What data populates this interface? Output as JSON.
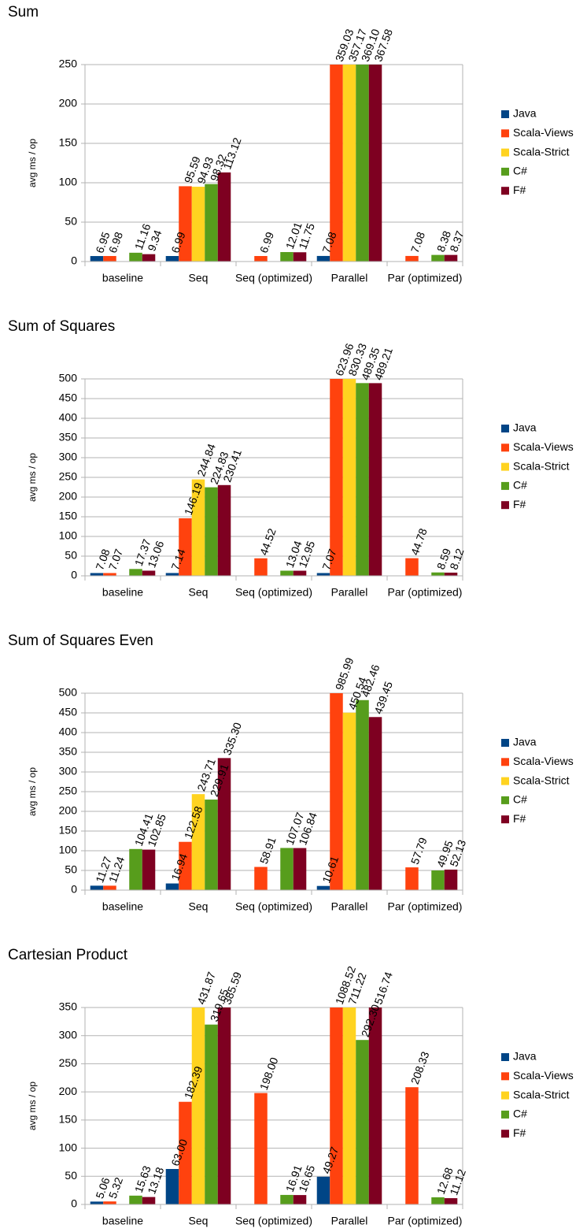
{
  "chart_data": [
    {
      "type": "bar",
      "title": "Sum",
      "ylabel": "avg ms / op",
      "categories": [
        "baseline",
        "Seq",
        "Seq (optimized)",
        "Parallel",
        "Par (optimized)"
      ],
      "ylim": [
        0,
        250
      ],
      "yticks": [
        0,
        50,
        100,
        150,
        200,
        250
      ],
      "grid": true,
      "legend": "right",
      "series": [
        {
          "name": "Java",
          "color": "#004586",
          "values": [
            6.95,
            6.99,
            null,
            7.08,
            null
          ],
          "value_labels": [
            "6.95",
            "6.99",
            null,
            "7.08",
            null
          ]
        },
        {
          "name": "Scala-Views",
          "color": "#ff420e",
          "values": [
            6.98,
            95.59,
            6.99,
            359.03,
            7.08
          ],
          "value_labels": [
            "6.98",
            "95.59",
            "6.99",
            "359.03",
            "7.08"
          ]
        },
        {
          "name": "Scala-Strict",
          "color": "#ffd320",
          "values": [
            null,
            94.93,
            null,
            357.17,
            null
          ],
          "value_labels": [
            null,
            "94.93",
            null,
            "357.17",
            null
          ]
        },
        {
          "name": "C#",
          "color": "#579d1c",
          "values": [
            11.16,
            98.32,
            12.01,
            369.1,
            8.38
          ],
          "value_labels": [
            "11.16",
            "98.32",
            "12.01",
            "369.10",
            "8.38"
          ]
        },
        {
          "name": "F#",
          "color": "#7e0021",
          "values": [
            9.34,
            113.12,
            11.75,
            367.58,
            8.37
          ],
          "value_labels": [
            "9.34",
            "113.12",
            "11.75",
            "367.58",
            "8.37"
          ]
        }
      ]
    },
    {
      "type": "bar",
      "title": "Sum of Squares",
      "ylabel": "avg ms / op",
      "categories": [
        "baseline",
        "Seq",
        "Seq (optimized)",
        "Parallel",
        "Par (optimized)"
      ],
      "ylim": [
        0,
        500
      ],
      "yticks": [
        0,
        50,
        100,
        150,
        200,
        250,
        300,
        350,
        400,
        450,
        500
      ],
      "grid": true,
      "legend": "right",
      "series": [
        {
          "name": "Java",
          "color": "#004586",
          "values": [
            7.08,
            7.14,
            null,
            7.07,
            null
          ],
          "value_labels": [
            "7.08",
            "7.14",
            null,
            "7.07",
            null
          ]
        },
        {
          "name": "Scala-Views",
          "color": "#ff420e",
          "values": [
            7.07,
            146.19,
            44.52,
            623.96,
            44.78
          ],
          "value_labels": [
            "7.07",
            "146.19",
            "44.52",
            "623.96",
            "44.78"
          ]
        },
        {
          "name": "Scala-Strict",
          "color": "#ffd320",
          "values": [
            null,
            244.84,
            null,
            830.33,
            null
          ],
          "value_labels": [
            null,
            "244.84",
            null,
            "830.33",
            null
          ]
        },
        {
          "name": "C#",
          "color": "#579d1c",
          "values": [
            17.37,
            224.83,
            13.04,
            489.35,
            8.59
          ],
          "value_labels": [
            "17.37",
            "224.83",
            "13.04",
            "489.35",
            "8.59"
          ]
        },
        {
          "name": "F#",
          "color": "#7e0021",
          "values": [
            13.06,
            230.41,
            12.95,
            489.21,
            8.12
          ],
          "value_labels": [
            "13.06",
            "230.41",
            "12.95",
            "489.21",
            "8.12"
          ]
        }
      ]
    },
    {
      "type": "bar",
      "title": "Sum of Squares Even",
      "ylabel": "avg ms / op",
      "categories": [
        "baseline",
        "Seq",
        "Seq (optimized)",
        "Parallel",
        "Par (optimized)"
      ],
      "ylim": [
        0,
        500
      ],
      "yticks": [
        0,
        50,
        100,
        150,
        200,
        250,
        300,
        350,
        400,
        450,
        500
      ],
      "grid": true,
      "legend": "right",
      "series": [
        {
          "name": "Java",
          "color": "#004586",
          "values": [
            11.27,
            16.94,
            null,
            10.61,
            null
          ],
          "value_labels": [
            "11.27",
            "16.94",
            null,
            "10.61",
            null
          ]
        },
        {
          "name": "Scala-Views",
          "color": "#ff420e",
          "values": [
            11.24,
            122.58,
            58.91,
            985.99,
            57.79
          ],
          "value_labels": [
            "11.24",
            "122.58",
            "58.91",
            "985.99",
            "57.79"
          ]
        },
        {
          "name": "Scala-Strict",
          "color": "#ffd320",
          "values": [
            null,
            243.71,
            null,
            450.54,
            null
          ],
          "value_labels": [
            null,
            "243.71",
            null,
            "450.54",
            null
          ]
        },
        {
          "name": "C#",
          "color": "#579d1c",
          "values": [
            104.41,
            229.91,
            107.07,
            482.46,
            49.95
          ],
          "value_labels": [
            "104.41",
            "229.91",
            "107.07",
            "482.46",
            "49.95"
          ]
        },
        {
          "name": "F#",
          "color": "#7e0021",
          "values": [
            102.85,
            335.3,
            106.84,
            439.45,
            52.13
          ],
          "value_labels": [
            "102.85",
            "335.30",
            "106.84",
            "439.45",
            "52.13"
          ]
        }
      ]
    },
    {
      "type": "bar",
      "title": "Cartesian Product",
      "ylabel": "avg ms / op",
      "categories": [
        "baseline",
        "Seq",
        "Seq (optimized)",
        "Parallel",
        "Par (optimized)"
      ],
      "ylim": [
        0,
        350
      ],
      "yticks": [
        0,
        50,
        100,
        150,
        200,
        250,
        300,
        350
      ],
      "grid": true,
      "legend": "right",
      "series": [
        {
          "name": "Java",
          "color": "#004586",
          "values": [
            5.06,
            63.0,
            null,
            49.27,
            null
          ],
          "value_labels": [
            "5.06",
            "63.00",
            null,
            "49.27",
            null
          ]
        },
        {
          "name": "Scala-Views",
          "color": "#ff420e",
          "values": [
            5.32,
            182.39,
            198.0,
            1088.52,
            208.33
          ],
          "value_labels": [
            "5.32",
            "182.39",
            "198.00",
            "1088.52",
            "208.33"
          ]
        },
        {
          "name": "Scala-Strict",
          "color": "#ffd320",
          "values": [
            null,
            431.87,
            null,
            711.22,
            null
          ],
          "value_labels": [
            null,
            "431.87",
            null,
            "711.22",
            null
          ]
        },
        {
          "name": "C#",
          "color": "#579d1c",
          "values": [
            15.63,
            319.65,
            16.91,
            292.3,
            12.68
          ],
          "value_labels": [
            "15.63",
            "319.65",
            "16.91",
            "292.30",
            "12.68"
          ]
        },
        {
          "name": "F#",
          "color": "#7e0021",
          "values": [
            13.18,
            385.59,
            16.65,
            516.74,
            11.12
          ],
          "value_labels": [
            "13.18",
            "385.59",
            "16.65",
            "516.74",
            "11.12"
          ]
        }
      ]
    }
  ]
}
